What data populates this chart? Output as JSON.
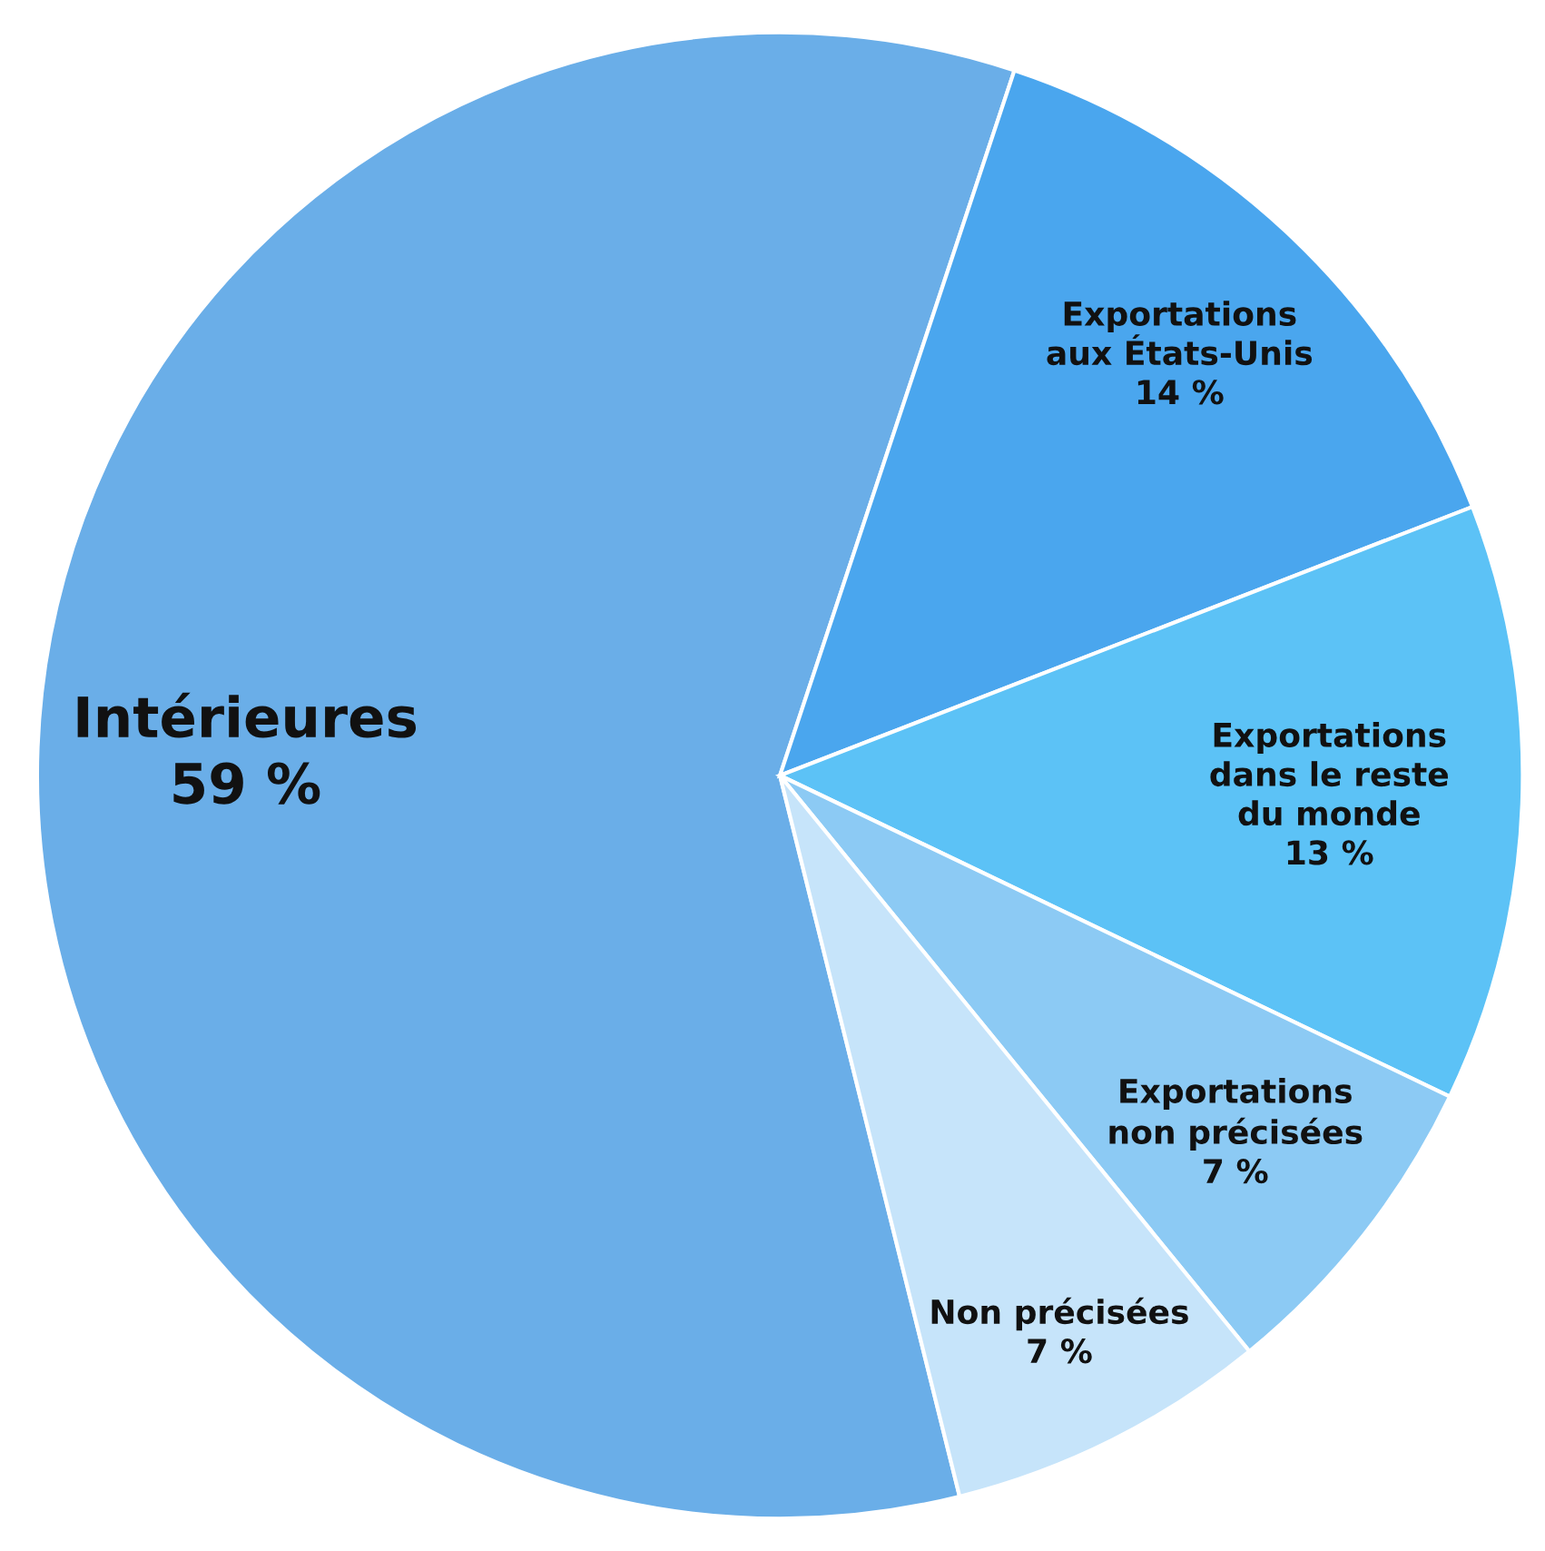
{
  "chart_data": {
    "type": "pie",
    "categories": [
      "Intérieures",
      "Exportations\naux États-Unis",
      "Exportations\ndans le reste\ndu monde",
      "Exportations\nnon précisées",
      "Non précisées"
    ],
    "values": [
      59,
      14,
      13,
      7,
      7
    ],
    "value_labels": [
      "59 %",
      "14 %",
      "13 %",
      "7 %",
      "7 %"
    ],
    "colors": [
      "#6aaee8",
      "#4aa6ee",
      "#5cc2f6",
      "#8ccaf4",
      "#c6e4fa"
    ],
    "legend": false
  }
}
